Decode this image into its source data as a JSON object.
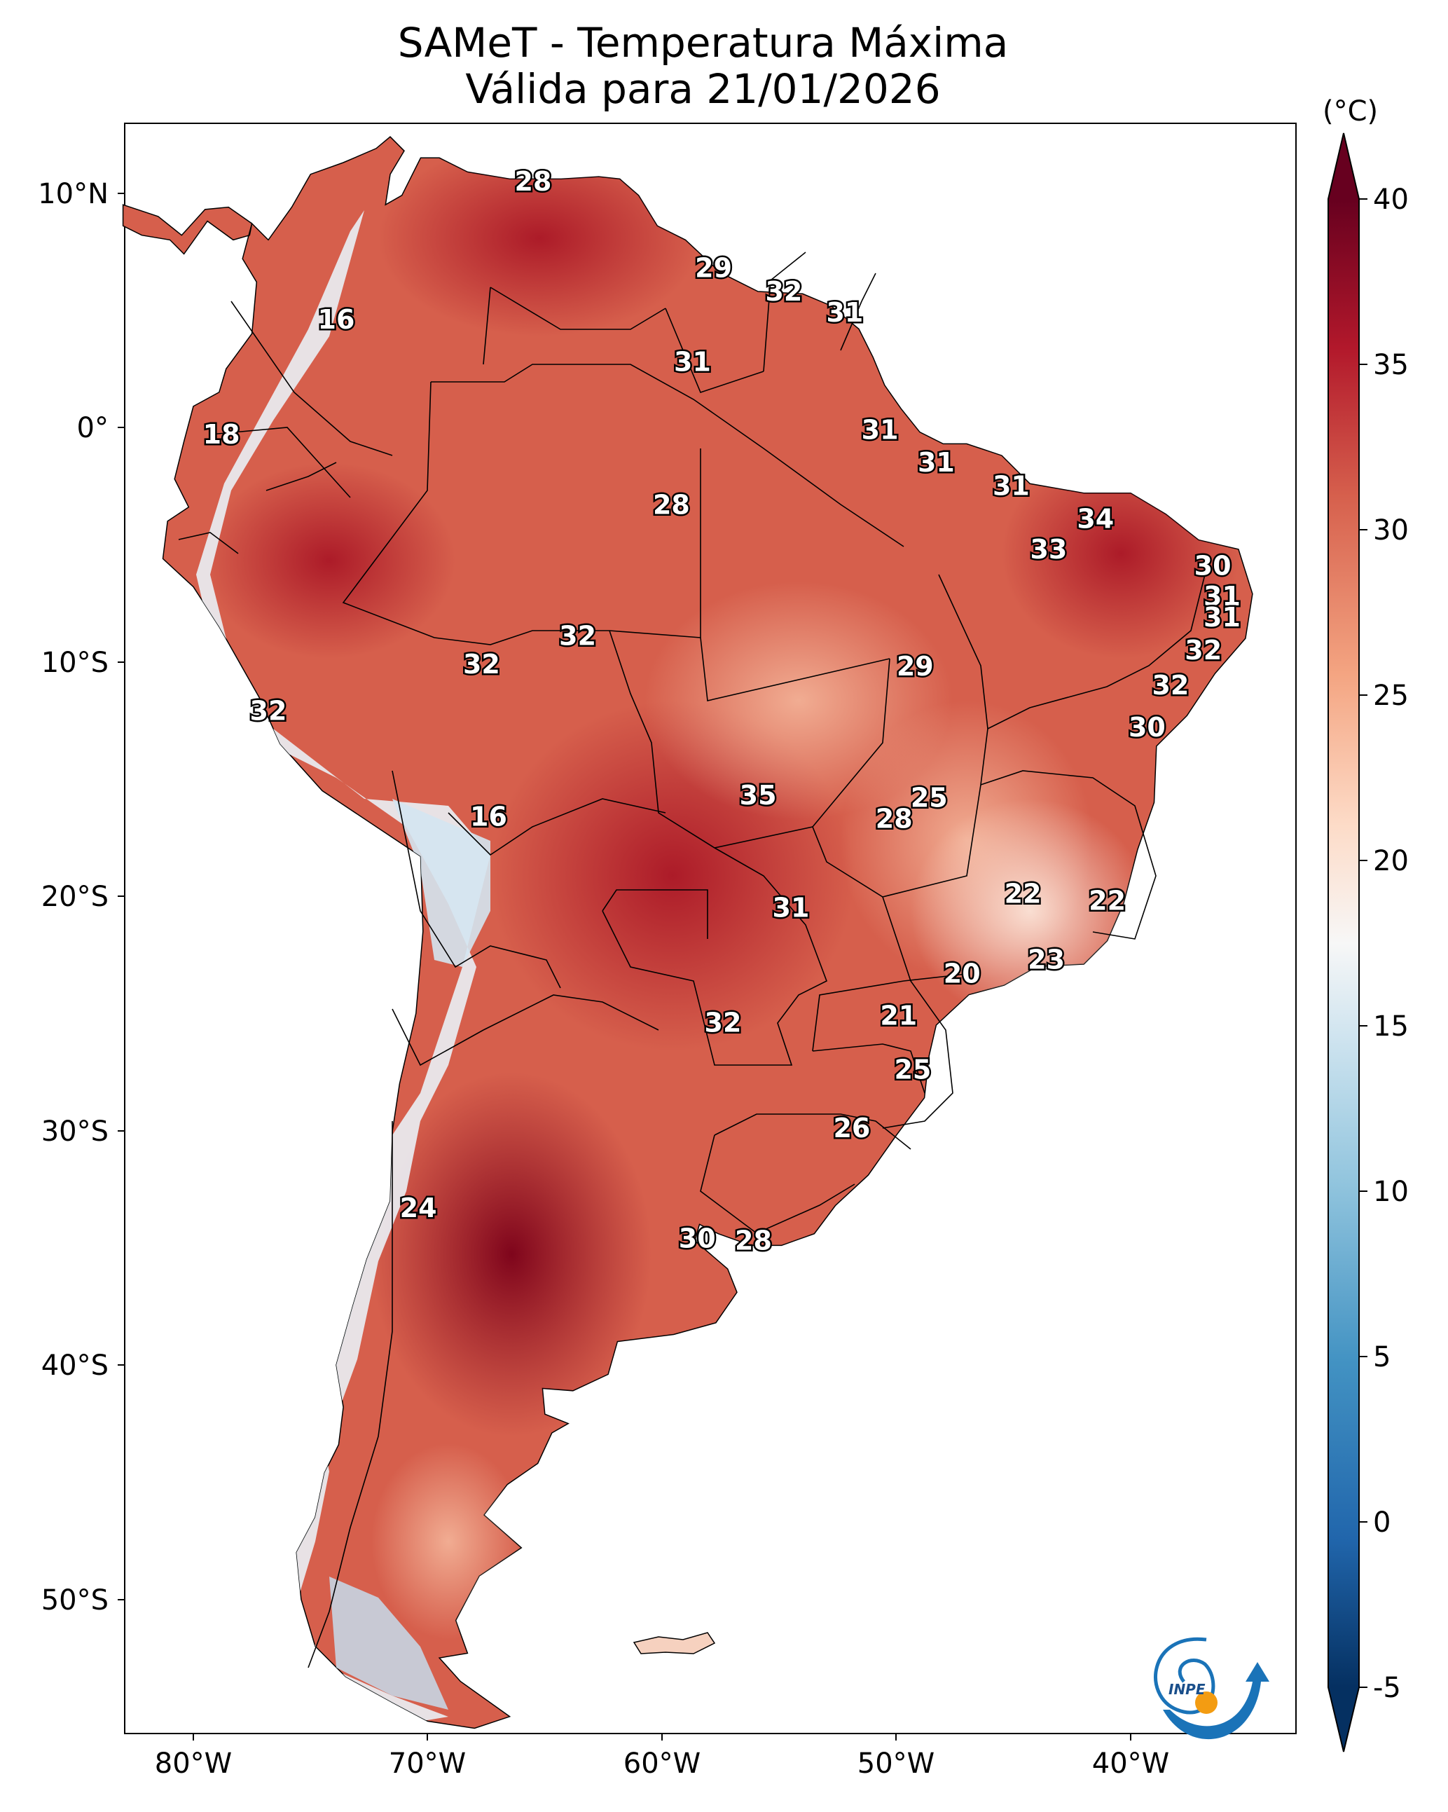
{
  "title_line1": "SAMeT - Temperatura Máxima",
  "title_line2": "Válida para 21/01/2026",
  "colorbar": {
    "unit": "(°C)",
    "ticks": [
      "-5",
      "0",
      "5",
      "10",
      "15",
      "20",
      "25",
      "30",
      "35",
      "40"
    ],
    "min": -5,
    "max": 40
  },
  "axes": {
    "lon_ticks": [
      "80°W",
      "70°W",
      "60°W",
      "50°W",
      "40°W"
    ],
    "lat_ticks": [
      "10°N",
      "0°",
      "10°S",
      "20°S",
      "30°S",
      "40°S",
      "50°S"
    ],
    "lon_range": [
      -83,
      -33
    ],
    "lat_range": [
      -56,
      13
    ]
  },
  "logo_text": "INPE",
  "temperature_labels": [
    {
      "value": "28",
      "lon": -65.5,
      "lat": 10.5
    },
    {
      "value": "29",
      "lon": -57.8,
      "lat": 6.8
    },
    {
      "value": "32",
      "lon": -54.8,
      "lat": 5.8
    },
    {
      "value": "31",
      "lon": -52.2,
      "lat": 4.9
    },
    {
      "value": "16",
      "lon": -73.9,
      "lat": 4.6
    },
    {
      "value": "31",
      "lon": -58.7,
      "lat": 2.8
    },
    {
      "value": "18",
      "lon": -78.8,
      "lat": -0.3
    },
    {
      "value": "31",
      "lon": -50.7,
      "lat": -0.1
    },
    {
      "value": "31",
      "lon": -48.3,
      "lat": -1.5
    },
    {
      "value": "31",
      "lon": -45.1,
      "lat": -2.5
    },
    {
      "value": "28",
      "lon": -59.6,
      "lat": -3.3
    },
    {
      "value": "34",
      "lon": -41.5,
      "lat": -3.9
    },
    {
      "value": "33",
      "lon": -43.5,
      "lat": -5.2
    },
    {
      "value": "30",
      "lon": -36.5,
      "lat": -5.9
    },
    {
      "value": "31",
      "lon": -36.1,
      "lat": -7.2
    },
    {
      "value": "31",
      "lon": -36.1,
      "lat": -8.1
    },
    {
      "value": "32",
      "lon": -63.6,
      "lat": -8.9
    },
    {
      "value": "32",
      "lon": -36.9,
      "lat": -9.5
    },
    {
      "value": "32",
      "lon": -67.7,
      "lat": -10.1
    },
    {
      "value": "29",
      "lon": -49.2,
      "lat": -10.2
    },
    {
      "value": "32",
      "lon": -38.3,
      "lat": -11.0
    },
    {
      "value": "32",
      "lon": -76.8,
      "lat": -12.1
    },
    {
      "value": "30",
      "lon": -39.3,
      "lat": -12.8
    },
    {
      "value": "35",
      "lon": -55.9,
      "lat": -15.7
    },
    {
      "value": "25",
      "lon": -48.6,
      "lat": -15.8
    },
    {
      "value": "28",
      "lon": -50.1,
      "lat": -16.7
    },
    {
      "value": "16",
      "lon": -67.4,
      "lat": -16.6
    },
    {
      "value": "22",
      "lon": -44.6,
      "lat": -19.9
    },
    {
      "value": "22",
      "lon": -41.0,
      "lat": -20.2
    },
    {
      "value": "31",
      "lon": -54.5,
      "lat": -20.5
    },
    {
      "value": "23",
      "lon": -43.6,
      "lat": -22.7
    },
    {
      "value": "20",
      "lon": -47.2,
      "lat": -23.3
    },
    {
      "value": "21",
      "lon": -49.9,
      "lat": -25.1
    },
    {
      "value": "32",
      "lon": -57.4,
      "lat": -25.4
    },
    {
      "value": "25",
      "lon": -49.3,
      "lat": -27.4
    },
    {
      "value": "26",
      "lon": -51.9,
      "lat": -29.9
    },
    {
      "value": "24",
      "lon": -70.4,
      "lat": -33.3
    },
    {
      "value": "30",
      "lon": -58.5,
      "lat": -34.6
    },
    {
      "value": "28",
      "lon": -56.1,
      "lat": -34.7
    }
  ]
}
